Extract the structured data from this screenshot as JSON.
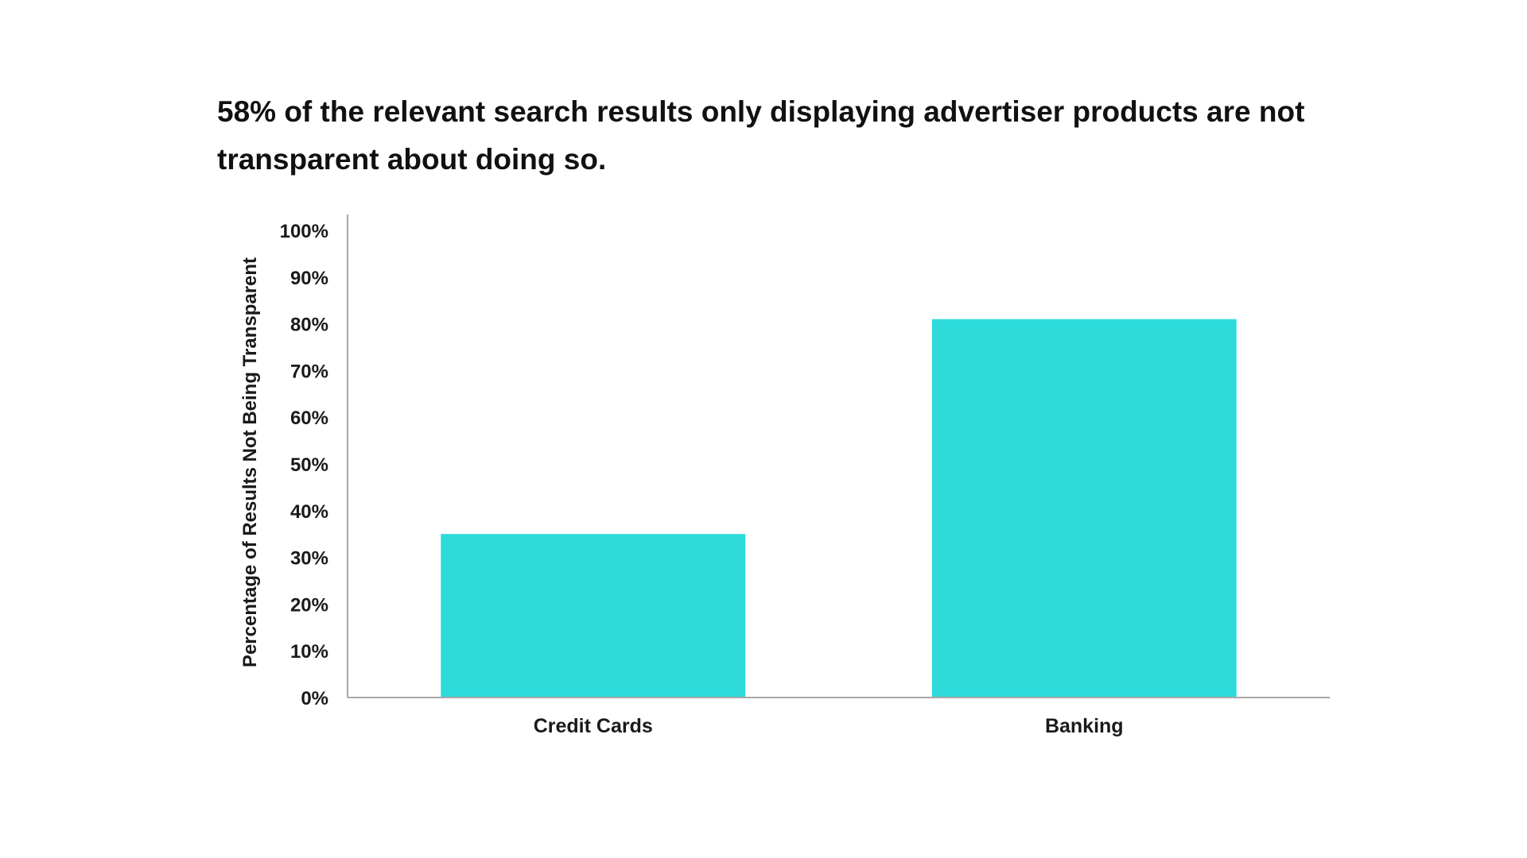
{
  "chart_data": {
    "type": "bar",
    "title": "58% of the relevant search results only displaying advertiser products are not transparent about doing so.",
    "xlabel": "",
    "ylabel": "Percentage of Results Not Being Transparent",
    "categories": [
      "Credit Cards",
      "Banking"
    ],
    "values": [
      35,
      81
    ],
    "ylim": [
      0,
      100
    ],
    "yticks": [
      "0%",
      "10%",
      "20%",
      "30%",
      "40%",
      "50%",
      "60%",
      "70%",
      "80%",
      "90%",
      "100%"
    ],
    "grid": false,
    "legend": "none",
    "bar_color": "#2ddbda",
    "axis_color": "#a8a8a8"
  }
}
